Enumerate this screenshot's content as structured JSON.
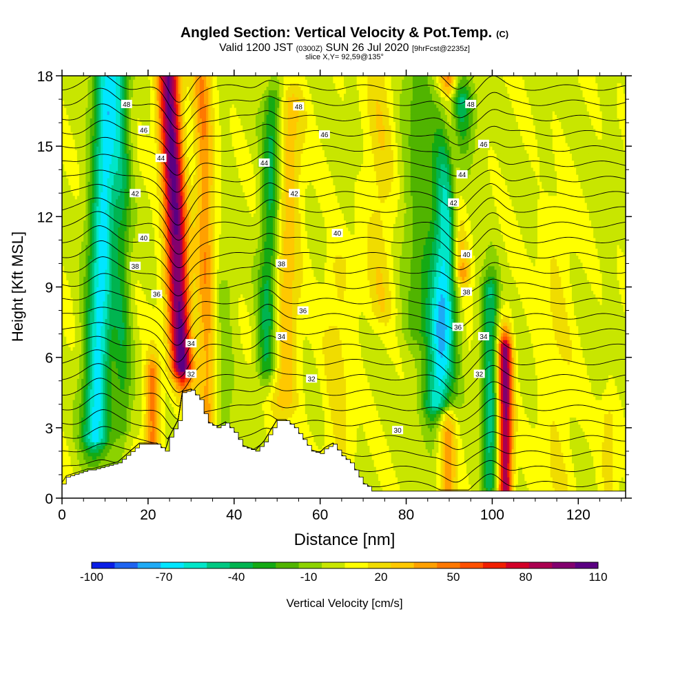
{
  "titles": {
    "main": "Angled Section: Vertical Velocity & Pot.Temp.",
    "main_unit": "(C)",
    "valid_prefix": "Valid 1200 JST",
    "valid_utc": "(0300Z)",
    "valid_date": "SUN 26 Jul 2020",
    "valid_fcst": "[9hrFcst@2235z]",
    "slice": "slice X,Y= 92,59@135°"
  },
  "chart_data": {
    "type": "heatmap",
    "xlabel": "Distance [nm]",
    "ylabel": "Height [Kft MSL]",
    "xlim": [
      0,
      131
    ],
    "ylim": [
      0,
      18
    ],
    "x_ticks": [
      0,
      20,
      40,
      60,
      80,
      100,
      120
    ],
    "y_ticks": [
      0,
      3,
      6,
      9,
      12,
      15,
      18
    ],
    "colorbar": {
      "label": "Vertical Velocity [cm/s]",
      "levels": [
        -100,
        -90,
        -80,
        -70,
        -60,
        -50,
        -40,
        -30,
        -20,
        -10,
        0,
        10,
        20,
        30,
        40,
        50,
        60,
        70,
        80,
        90,
        100,
        110
      ],
      "tick_labels": [
        "-100",
        "-70",
        "-40",
        "-10",
        "20",
        "50",
        "80",
        "110"
      ],
      "colors": [
        "#0a1ee6",
        "#1e64f0",
        "#1eaaf5",
        "#00e6ff",
        "#00e6c8",
        "#00c882",
        "#00b450",
        "#14aa14",
        "#50b400",
        "#8cd200",
        "#c8e600",
        "#ffff00",
        "#f0dc00",
        "#ffc800",
        "#ffa000",
        "#ff7800",
        "#ff5000",
        "#f01e00",
        "#d20028",
        "#aa0050",
        "#82006e",
        "#5a0082"
      ]
    },
    "updraft_cores": [
      {
        "x": 27,
        "wmax": 100
      },
      {
        "x": 33,
        "wmax": 40
      },
      {
        "x": 52,
        "wmax": 30
      },
      {
        "x": 93,
        "wmax": 70
      },
      {
        "x": 103,
        "wmax": 90
      },
      {
        "x": 21,
        "wmax": 50
      }
    ],
    "downdraft_cores": [
      {
        "x": 8,
        "wmin": -70
      },
      {
        "x": 48,
        "wmin": -40
      },
      {
        "x": 90,
        "wmin": -70
      },
      {
        "x": 100,
        "wmin": -50
      }
    ],
    "theta_contours": [
      {
        "level": 30,
        "label_x": 78,
        "label_y": 2.9
      },
      {
        "level": 32,
        "label_x": 30,
        "label_y": 5.3
      },
      {
        "level": 32,
        "label_x": 58,
        "label_y": 5.1
      },
      {
        "level": 32,
        "label_x": 97,
        "label_y": 5.3
      },
      {
        "level": 34,
        "label_x": 30,
        "label_y": 6.6
      },
      {
        "level": 34,
        "label_x": 51,
        "label_y": 6.9
      },
      {
        "level": 34,
        "label_x": 98,
        "label_y": 6.9
      },
      {
        "level": 36,
        "label_x": 22,
        "label_y": 8.7
      },
      {
        "level": 36,
        "label_x": 56,
        "label_y": 8.0
      },
      {
        "level": 36,
        "label_x": 92,
        "label_y": 7.3
      },
      {
        "level": 38,
        "label_x": 17,
        "label_y": 9.9
      },
      {
        "level": 38,
        "label_x": 51,
        "label_y": 10.0
      },
      {
        "level": 38,
        "label_x": 94,
        "label_y": 8.8
      },
      {
        "level": 40,
        "label_x": 19,
        "label_y": 11.1
      },
      {
        "level": 40,
        "label_x": 64,
        "label_y": 11.3
      },
      {
        "level": 40,
        "label_x": 94,
        "label_y": 10.4
      },
      {
        "level": 42,
        "label_x": 17,
        "label_y": 13.0
      },
      {
        "level": 42,
        "label_x": 54,
        "label_y": 13.0
      },
      {
        "level": 42,
        "label_x": 91,
        "label_y": 12.6
      },
      {
        "level": 44,
        "label_x": 23,
        "label_y": 14.5
      },
      {
        "level": 44,
        "label_x": 47,
        "label_y": 14.3
      },
      {
        "level": 44,
        "label_x": 93,
        "label_y": 13.8
      },
      {
        "level": 46,
        "label_x": 19,
        "label_y": 15.7
      },
      {
        "level": 46,
        "label_x": 61,
        "label_y": 15.5
      },
      {
        "level": 46,
        "label_x": 98,
        "label_y": 15.1
      },
      {
        "level": 48,
        "label_x": 15,
        "label_y": 16.8
      },
      {
        "level": 48,
        "label_x": 55,
        "label_y": 16.7
      },
      {
        "level": 48,
        "label_x": 95,
        "label_y": 16.8
      }
    ],
    "terrain_height": [
      [
        0,
        0.6
      ],
      [
        1,
        0.9
      ],
      [
        6,
        1.2
      ],
      [
        7,
        1.2
      ],
      [
        13,
        1.5
      ],
      [
        18,
        2.3
      ],
      [
        22,
        2.3
      ],
      [
        24,
        2.0
      ],
      [
        25,
        2.6
      ],
      [
        27,
        3.3
      ],
      [
        28,
        4.5
      ],
      [
        30,
        4.6
      ],
      [
        32,
        4.2
      ],
      [
        33,
        3.6
      ],
      [
        34,
        3.2
      ],
      [
        36,
        3.0
      ],
      [
        38,
        3.2
      ],
      [
        40,
        2.8
      ],
      [
        42,
        2.2
      ],
      [
        45,
        2.0
      ],
      [
        47,
        2.4
      ],
      [
        49,
        3.0
      ],
      [
        50,
        3.3
      ],
      [
        52,
        3.3
      ],
      [
        54,
        3.0
      ],
      [
        56,
        2.5
      ],
      [
        58,
        2.0
      ],
      [
        60,
        1.9
      ],
      [
        61,
        2.1
      ],
      [
        63,
        2.3
      ],
      [
        65,
        1.8
      ],
      [
        67,
        1.5
      ],
      [
        68,
        1.2
      ],
      [
        70,
        0.6
      ],
      [
        71,
        0.5
      ],
      [
        72,
        0.3
      ],
      [
        131,
        0.3
      ]
    ]
  }
}
